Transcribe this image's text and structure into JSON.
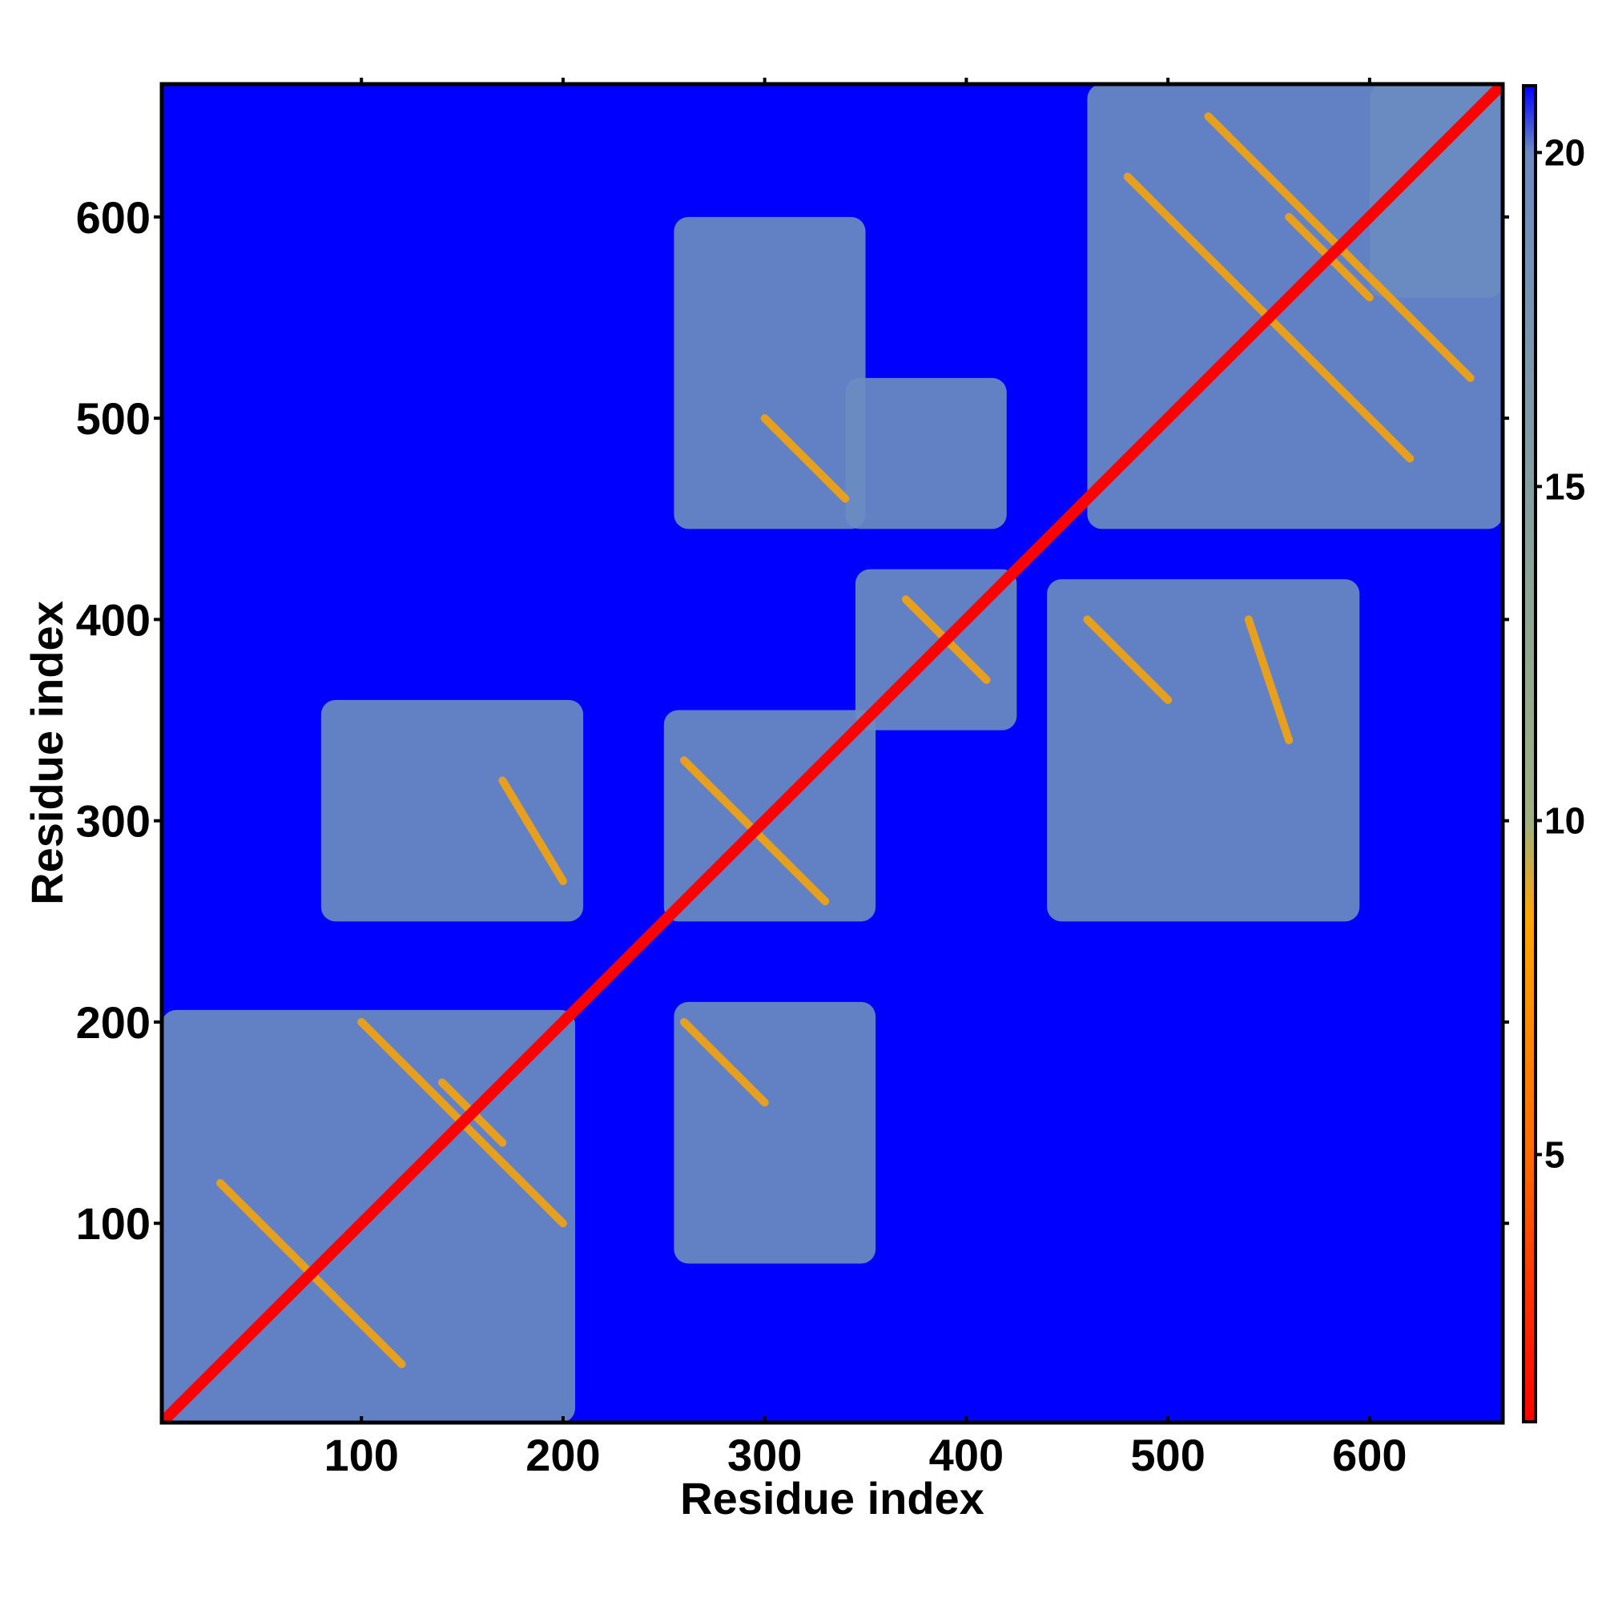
{
  "chart_data": {
    "type": "heatmap",
    "title": "",
    "xlabel": "Residue index",
    "ylabel": "Residue index",
    "xlim": [
      1,
      666
    ],
    "ylim": [
      1,
      666
    ],
    "x_ticks": [
      100,
      200,
      300,
      400,
      500,
      600
    ],
    "y_ticks": [
      100,
      200,
      300,
      400,
      500,
      600
    ],
    "x_tick_labels": [
      "100",
      "200",
      "300",
      "400",
      "500",
      "600"
    ],
    "y_tick_labels": [
      "100",
      "200",
      "300",
      "400",
      "500",
      "600"
    ],
    "grid": false,
    "colorbar": {
      "range": [
        1,
        21
      ],
      "ticks": [
        5,
        10,
        15,
        20
      ],
      "tick_labels": [
        "5",
        "10",
        "15",
        "20"
      ],
      "colors": [
        "#ff0000",
        "#ff6a00",
        "#ffa500",
        "#9fb080",
        "#6a8cc0",
        "#0000ff"
      ],
      "stops": [
        1,
        5,
        8.5,
        10,
        20,
        21
      ]
    },
    "background_value": 21,
    "background_color": "#0000ff",
    "diagonal": {
      "from": 1,
      "to": 666,
      "value": 2,
      "color": "#ff0000"
    },
    "blocks": [
      {
        "x": [
          1,
          206
        ],
        "y": [
          1,
          206
        ],
        "value": 17
      },
      {
        "x": [
          460,
          666
        ],
        "y": [
          445,
          666
        ],
        "value": 17
      },
      {
        "x": [
          250,
          355
        ],
        "y": [
          250,
          355
        ],
        "value": 17
      },
      {
        "x": [
          345,
          425
        ],
        "y": [
          345,
          425
        ],
        "value": 17
      },
      {
        "x": [
          255,
          350
        ],
        "y": [
          445,
          600
        ],
        "value": 17
      },
      {
        "x": [
          340,
          420
        ],
        "y": [
          445,
          520
        ],
        "value": 17
      },
      {
        "x": [
          440,
          595
        ],
        "y": [
          250,
          420
        ],
        "value": 17
      },
      {
        "x": [
          255,
          355
        ],
        "y": [
          80,
          210
        ],
        "value": 17
      },
      {
        "x": [
          80,
          210
        ],
        "y": [
          250,
          360
        ],
        "value": 17
      },
      {
        "x": [
          600,
          666
        ],
        "y": [
          560,
          666
        ],
        "value": 17
      }
    ],
    "contact_lines": [
      {
        "from": [
          30,
          120
        ],
        "to": [
          120,
          30
        ],
        "value": 7
      },
      {
        "from": [
          100,
          200
        ],
        "to": [
          200,
          100
        ],
        "value": 7
      },
      {
        "from": [
          140,
          170
        ],
        "to": [
          170,
          140
        ],
        "value": 7
      },
      {
        "from": [
          480,
          620
        ],
        "to": [
          620,
          480
        ],
        "value": 7
      },
      {
        "from": [
          520,
          650
        ],
        "to": [
          650,
          520
        ],
        "value": 7
      },
      {
        "from": [
          560,
          600
        ],
        "to": [
          600,
          560
        ],
        "value": 7
      },
      {
        "from": [
          260,
          330
        ],
        "to": [
          330,
          260
        ],
        "value": 7
      },
      {
        "from": [
          370,
          410
        ],
        "to": [
          410,
          370
        ],
        "value": 7
      },
      {
        "from": [
          340,
          460
        ],
        "to": [
          300,
          500
        ],
        "value": 7
      },
      {
        "from": [
          460,
          400
        ],
        "to": [
          500,
          360
        ],
        "value": 7
      },
      {
        "from": [
          540,
          400
        ],
        "to": [
          560,
          340
        ],
        "value": 7
      },
      {
        "from": [
          170,
          320
        ],
        "to": [
          200,
          270
        ],
        "value": 7
      },
      {
        "from": [
          260,
          200
        ],
        "to": [
          300,
          160
        ],
        "value": 7
      }
    ]
  }
}
